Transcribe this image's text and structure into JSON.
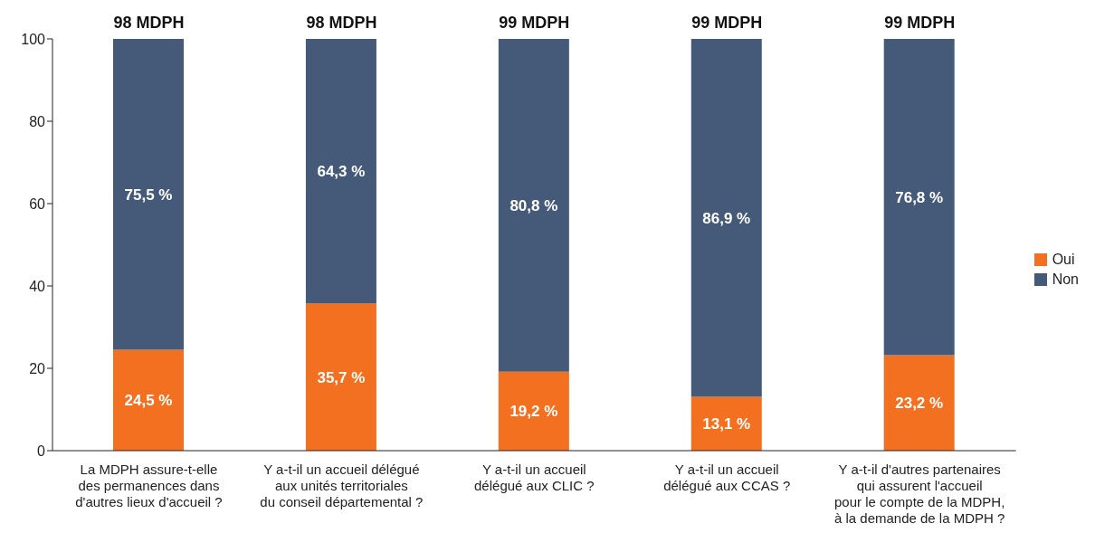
{
  "chart_data": {
    "type": "bar",
    "stacked": true,
    "categories": [
      "La MDPH assure-t-elle\ndes permanences dans\nd'autres lieux d'accueil ?",
      "Y a-t-il un accueil délégué\naux unités territoriales\ndu conseil départemental ?",
      "Y a-t-il un accueil\ndélégué aux CLIC ?",
      "Y a-t-il un accueil\ndélégué aux CCAS ?",
      "Y a-t-il d'autres partenaires\nqui assurent l'accueil\npour le compte de la MDPH,\nà la demande de la MDPH ?"
    ],
    "series": [
      {
        "name": "Oui",
        "color": "#f37021",
        "values": [
          24.5,
          35.7,
          19.2,
          13.1,
          23.2
        ],
        "value_labels": [
          "24,5 %",
          "35,7 %",
          "19,2 %",
          "13,1 %",
          "23,2 %"
        ]
      },
      {
        "name": "Non",
        "color": "#445a78",
        "values": [
          75.5,
          64.3,
          80.8,
          86.9,
          76.8
        ],
        "value_labels": [
          "75,5 %",
          "64,3 %",
          "80,8 %",
          "86,9 %",
          "76,8 %"
        ]
      }
    ],
    "annotations": [
      {
        "text": "98 MDPH",
        "x": "La MDPH assure-t-elle\ndes permanences dans\nd'autres lieux d'accueil ?",
        "y": 100
      },
      {
        "text": "98 MDPH",
        "x": "Y a-t-il un accueil délégué\naux unités territoriales\ndu conseil départemental ?",
        "y": 100
      },
      {
        "text": "99 MDPH",
        "x": "Y a-t-il un accueil\ndélégué aux CLIC ?",
        "y": 100
      },
      {
        "text": "99 MDPH",
        "x": "Y a-t-il un accueil\ndélégué aux CCAS ?",
        "y": 100
      },
      {
        "text": "99 MDPH",
        "x": "Y a-t-il d'autres partenaires\nqui assurent l'accueil\npour le compte de la MDPH,\nà la demande de la MDPH ?",
        "y": 100
      }
    ],
    "ylim": [
      0,
      100
    ],
    "yticks": [
      0,
      20,
      40,
      60,
      80,
      100
    ],
    "grid": false,
    "legend": "right"
  }
}
